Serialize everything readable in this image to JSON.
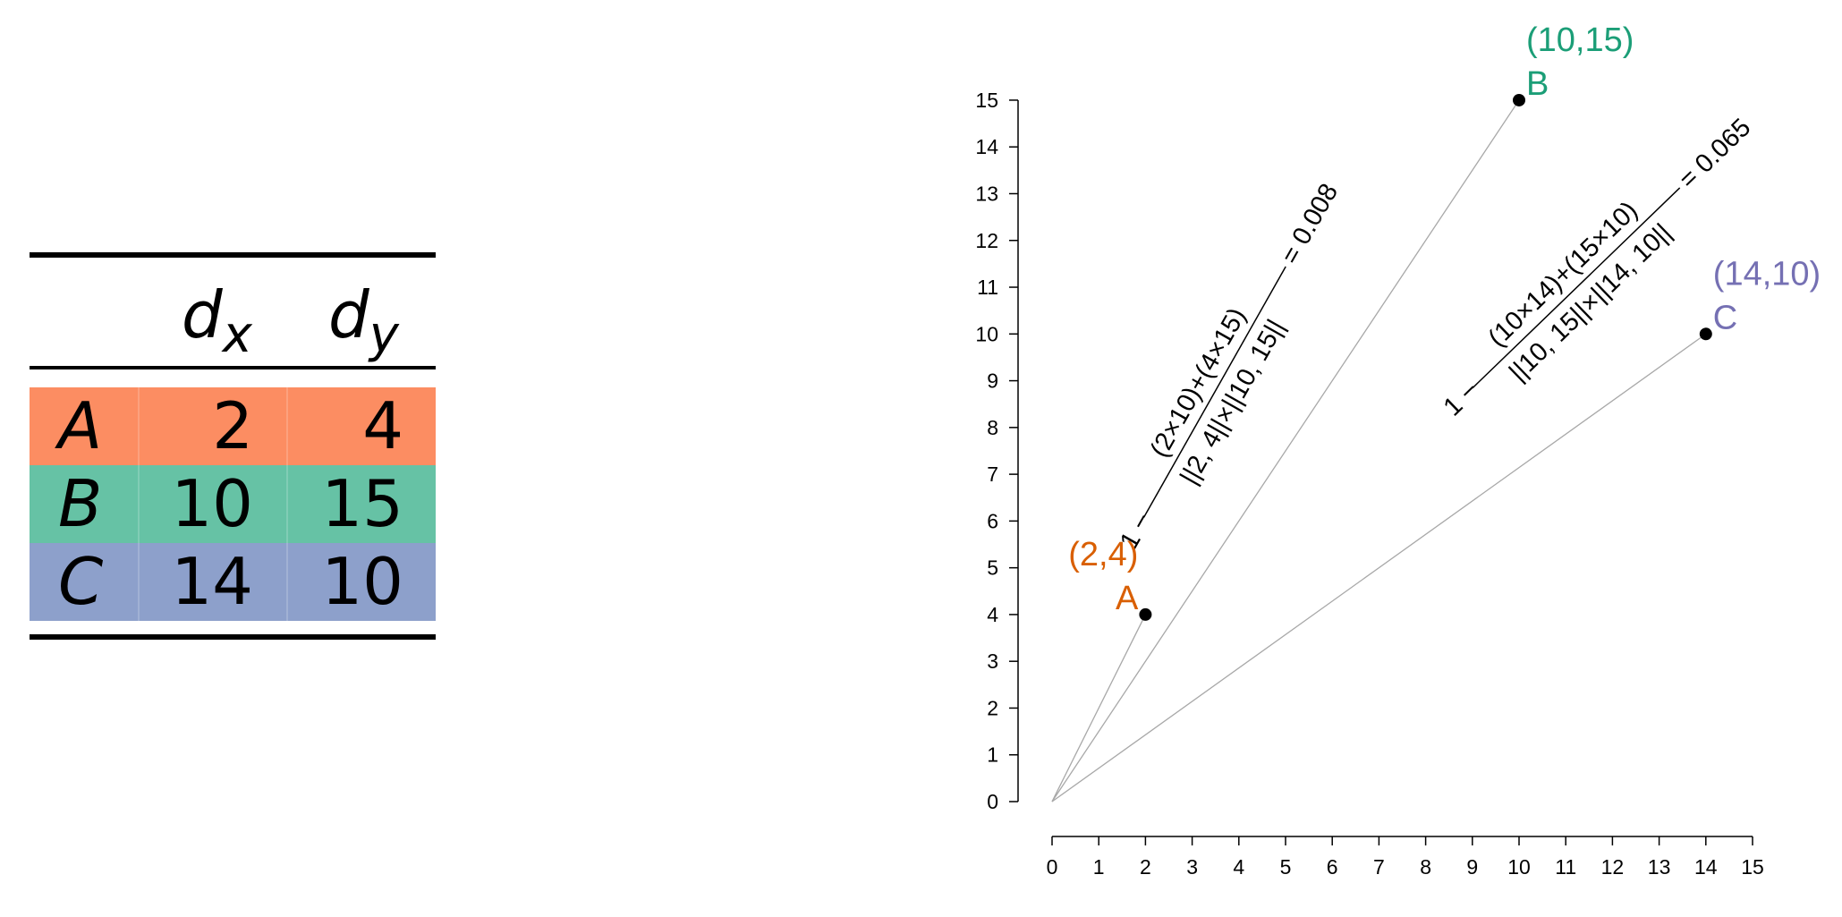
{
  "table": {
    "headers": {
      "col1_base": "d",
      "col1_sub": "x",
      "col2_base": "d",
      "col2_sub": "y"
    },
    "rows": [
      {
        "label": "A",
        "dx": "2",
        "dy": "4",
        "color": "#fc8d62"
      },
      {
        "label": "B",
        "dx": "10",
        "dy": "15",
        "color": "#66c2a5"
      },
      {
        "label": "C",
        "dx": "14",
        "dy": "10",
        "color": "#8da0cb"
      }
    ]
  },
  "chart_data": {
    "type": "scatter",
    "title": "",
    "xlabel": "",
    "ylabel": "",
    "xlim": [
      0,
      15
    ],
    "ylim": [
      0,
      15
    ],
    "x_ticks": [
      "0",
      "1",
      "2",
      "3",
      "4",
      "5",
      "6",
      "7",
      "8",
      "9",
      "10",
      "11",
      "12",
      "13",
      "14",
      "15"
    ],
    "y_ticks": [
      "0",
      "1",
      "2",
      "3",
      "4",
      "5",
      "6",
      "7",
      "8",
      "9",
      "10",
      "11",
      "12",
      "13",
      "14",
      "15"
    ],
    "grid": false,
    "points": [
      {
        "name": "A",
        "x": 2,
        "y": 4,
        "coord_label": "(2,4)",
        "color": "#d95f02"
      },
      {
        "name": "B",
        "x": 10,
        "y": 15,
        "coord_label": "(10,15)",
        "color": "#1b9e77"
      },
      {
        "name": "C",
        "x": 14,
        "y": 10,
        "coord_label": "(14,10)",
        "color": "#7570b3"
      }
    ],
    "annotations": [
      {
        "between": [
          "A",
          "B"
        ],
        "prefix": "1 −",
        "numerator": "(2×10)+(4×15)",
        "denominator": "||2, 4||×||10, 15||",
        "result": "= 0.008"
      },
      {
        "between": [
          "B",
          "C"
        ],
        "prefix": "1 −",
        "numerator": "(10×14)+(15×10)",
        "denominator": "||10, 15||×||14, 10||",
        "result": "= 0.065"
      }
    ]
  }
}
